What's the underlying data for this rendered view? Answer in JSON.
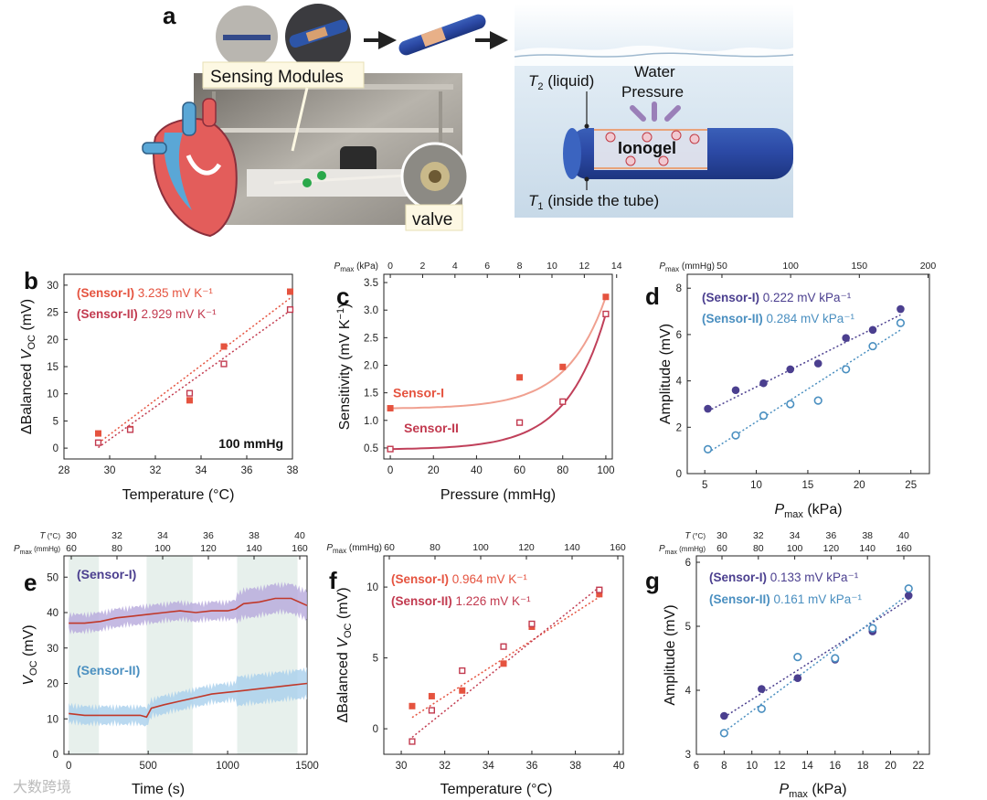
{
  "panel_a": {
    "label": "a",
    "sensing_modules_label": "Sensing Modules",
    "valve_label": "valve",
    "t2_label": "T",
    "t2_sub": "2",
    "t2_suffix": " (liquid)",
    "water_pressure_line1": "Water",
    "water_pressure_line2": "Pressure",
    "ionogel_label": "Ionogel",
    "t1_label": "T",
    "t1_sub": "1",
    "t1_suffix": " (inside the tube)"
  },
  "watermark": "大数跨境",
  "colors": {
    "sensor1_red": "#e5533f",
    "sensor2_red": "#c23a4f",
    "sensor1_purple": "#4b3f8f",
    "sensor2_blue": "#4a8fc0",
    "curve_light": "#f0a090",
    "curve_dark": "#c0405a"
  },
  "chart_data": [
    {
      "id": "b",
      "label": "b",
      "type": "scatter",
      "xlabel": "Temperature (°C)",
      "ylabel_prefix": "ΔBalanced ",
      "ylabel_var": "V",
      "ylabel_sub": "OC",
      "ylabel_suffix": " (mV)",
      "xlim": [
        28,
        38
      ],
      "ylim": [
        -2,
        32
      ],
      "xticks": [
        28,
        30,
        32,
        34,
        36,
        38
      ],
      "yticks": [
        0,
        5,
        10,
        15,
        20,
        25,
        30
      ],
      "annotation": "100 mmHg",
      "series": [
        {
          "name": "(Sensor-I)",
          "slope": "3.235 mV K⁻¹",
          "marker": "filled-square",
          "color": "#e5533f",
          "x": [
            29.5,
            30.9,
            33.5,
            35.0,
            37.9
          ],
          "y": [
            2.7,
            3.5,
            8.8,
            18.7,
            28.8
          ],
          "fit": [
            [
              29.5,
              0.9
            ],
            [
              37.9,
              27.6
            ]
          ]
        },
        {
          "name": "(Sensor-II)",
          "slope": "2.929 mV K⁻¹",
          "marker": "open-square",
          "color": "#c23a4f",
          "x": [
            29.5,
            30.9,
            33.5,
            35.0,
            37.9
          ],
          "y": [
            1.0,
            3.4,
            10.1,
            15.5,
            25.5
          ],
          "fit": [
            [
              29.5,
              0.1
            ],
            [
              37.9,
              25.3
            ]
          ]
        }
      ]
    },
    {
      "id": "c",
      "label": "c",
      "type": "scatter",
      "xlabel": "Pressure (mmHg)",
      "ylabel_prefix": "Sensitivity (mV K",
      "ylabel_sup": "−1",
      "ylabel_suffix": ")",
      "top_axis_var": "P",
      "top_axis_sub": "max",
      "top_axis_unit": " (kPa)",
      "top_ticks": [
        0,
        2,
        4,
        6,
        8,
        10,
        12,
        14
      ],
      "xlim": [
        -3,
        103
      ],
      "ylim": [
        0.3,
        3.65
      ],
      "xticks": [
        0,
        20,
        40,
        60,
        80,
        100
      ],
      "yticks": [
        0.5,
        1.0,
        1.5,
        2.0,
        2.5,
        3.0,
        3.5
      ],
      "yticklabels": [
        "0.5",
        "1.0",
        "1.5",
        "2.0",
        "2.5",
        "3.0",
        "3.5"
      ],
      "series": [
        {
          "name": "Sensor-I",
          "marker": "filled-square",
          "color": "#e5533f",
          "curve_color": "#f0a090",
          "x": [
            0,
            60,
            80,
            100
          ],
          "y": [
            1.22,
            1.78,
            1.97,
            3.24
          ]
        },
        {
          "name": "Sensor-II",
          "marker": "open-square",
          "color": "#c23a4f",
          "curve_color": "#c0405a",
          "x": [
            0,
            60,
            80,
            100
          ],
          "y": [
            0.48,
            0.96,
            1.34,
            2.93
          ]
        }
      ]
    },
    {
      "id": "d",
      "label": "d",
      "type": "scatter",
      "xlabel_var": "P",
      "xlabel_sub": "max",
      "xlabel_suffix": " (kPa)",
      "ylabel": "Amplitude (mV)",
      "top_axis_var": "P",
      "top_axis_sub": "max",
      "top_axis_unit": " (mmHg)",
      "top_ticks": [
        50,
        100,
        150,
        200
      ],
      "xlim": [
        3.3,
        26.8
      ],
      "ylim": [
        0,
        8.6
      ],
      "xticks": [
        5,
        10,
        15,
        20,
        25
      ],
      "yticks": [
        0,
        2,
        4,
        6,
        8
      ],
      "series": [
        {
          "name": "(Sensor-I)",
          "slope": "0.222 mV kPa⁻¹",
          "marker": "filled-circle",
          "color": "#4b3f8f",
          "x": [
            5.3,
            8.0,
            10.7,
            13.3,
            16.0,
            18.7,
            21.3,
            24.0
          ],
          "y": [
            2.8,
            3.6,
            3.9,
            4.5,
            4.75,
            5.85,
            6.2,
            7.1
          ],
          "fit": [
            [
              5.3,
              2.7
            ],
            [
              24.0,
              6.85
            ]
          ]
        },
        {
          "name": "(Sensor-II)",
          "slope": "0.284 mV kPa⁻¹",
          "marker": "open-circle",
          "color": "#4a8fc0",
          "x": [
            5.3,
            8.0,
            10.7,
            13.3,
            16.0,
            18.7,
            21.3,
            24.0
          ],
          "y": [
            1.05,
            1.65,
            2.5,
            3.0,
            3.15,
            4.5,
            5.5,
            6.5
          ],
          "fit": [
            [
              5.3,
              0.9
            ],
            [
              24.0,
              6.2
            ]
          ]
        }
      ]
    },
    {
      "id": "e",
      "label": "e",
      "type": "line",
      "xlabel": "Time (s)",
      "ylabel_var": "V",
      "ylabel_sub": "OC",
      "ylabel_suffix": " (mV)",
      "xlim": [
        -30,
        1500
      ],
      "ylim": [
        0,
        56
      ],
      "xticks": [
        0,
        500,
        1000,
        1500
      ],
      "yticks": [
        0,
        10,
        20,
        30,
        40,
        50
      ],
      "top_axis1_label": "T",
      "top_axis1_unit": " (°C)",
      "top_axis1_ticks": [
        30,
        32,
        34,
        36,
        38,
        40
      ],
      "top_axis2_var": "P",
      "top_axis2_sub": "max",
      "top_axis2_unit": " (mmHg)",
      "top_axis2_ticks": [
        60,
        80,
        100,
        120,
        140,
        160
      ],
      "shaded_bands": [
        [
          0,
          190
        ],
        [
          490,
          780
        ],
        [
          1060,
          1440
        ]
      ],
      "series": [
        {
          "name": "(Sensor-I)",
          "color": "#4b3f8f",
          "line_color": "#c0392b",
          "band_color": "#b7a9dc",
          "x": [
            0,
            100,
            200,
            300,
            400,
            500,
            600,
            700,
            800,
            900,
            1000,
            1050,
            1100,
            1200,
            1300,
            1400,
            1500
          ],
          "y": [
            37,
            37,
            37.5,
            38.5,
            39,
            39.5,
            40,
            40.5,
            40,
            40.5,
            40.5,
            41,
            42.5,
            43,
            44,
            44,
            42
          ]
        },
        {
          "name": "(Sensor-II)",
          "color": "#4a8fc0",
          "line_color": "#c0392b",
          "band_color": "#a9cfec",
          "x": [
            0,
            100,
            200,
            300,
            400,
            450,
            490,
            520,
            600,
            700,
            800,
            900,
            1000,
            1100,
            1200,
            1300,
            1400,
            1500
          ],
          "y": [
            11.5,
            11,
            11,
            11,
            11,
            11,
            10.5,
            13,
            14,
            15,
            16,
            17,
            17.5,
            18,
            18.5,
            19,
            19.5,
            20
          ]
        }
      ]
    },
    {
      "id": "f",
      "label": "f",
      "type": "scatter",
      "xlabel": "Temperature (°C)",
      "ylabel_prefix": "ΔBalanced ",
      "ylabel_var": "V",
      "ylabel_sub": "OC",
      "ylabel_suffix": " (mV)",
      "top_axis_var": "P",
      "top_axis_sub": "max",
      "top_axis_unit": " (mmHg)",
      "top_ticks": [
        60,
        80,
        100,
        120,
        140,
        160
      ],
      "xlim": [
        29.2,
        40.2
      ],
      "ylim": [
        -1.8,
        12.2
      ],
      "xticks": [
        30,
        32,
        34,
        36,
        38,
        40
      ],
      "yticks": [
        0,
        5,
        10
      ],
      "series": [
        {
          "name": "(Sensor-I)",
          "slope": "0.964 mV K⁻¹",
          "marker": "filled-square",
          "color": "#e5533f",
          "x": [
            30.5,
            31.4,
            32.8,
            34.7,
            36.0,
            39.1
          ],
          "y": [
            1.6,
            2.3,
            2.7,
            4.6,
            7.2,
            9.5
          ],
          "fit": [
            [
              30.5,
              0.8
            ],
            [
              39.1,
              9.3
            ]
          ]
        },
        {
          "name": "(Sensor-II)",
          "slope": "1.226 mV K⁻¹",
          "marker": "open-square",
          "color": "#c23a4f",
          "x": [
            30.5,
            31.4,
            32.8,
            34.7,
            36.0,
            39.1
          ],
          "y": [
            -0.9,
            1.3,
            4.1,
            5.8,
            7.4,
            9.8
          ],
          "fit": [
            [
              30.5,
              -0.6
            ],
            [
              39.1,
              10.0
            ]
          ]
        }
      ]
    },
    {
      "id": "g",
      "label": "g",
      "type": "scatter",
      "xlabel_var": "P",
      "xlabel_sub": "max",
      "xlabel_suffix": " (kPa)",
      "ylabel": "Amplitude (mV)",
      "top_axis1_label": "T",
      "top_axis1_unit": " (°C)",
      "top_axis1_ticks": [
        30,
        32,
        34,
        36,
        38,
        40
      ],
      "top_axis2_var": "P",
      "top_axis2_sub": "max",
      "top_axis2_unit": " (mmHg)",
      "top_axis2_ticks": [
        60,
        80,
        100,
        120,
        140,
        160
      ],
      "xlim": [
        6,
        22.8
      ],
      "ylim": [
        3,
        6.1
      ],
      "xticks": [
        6,
        8,
        10,
        12,
        14,
        16,
        18,
        20,
        22
      ],
      "yticks": [
        3,
        4,
        5,
        6
      ],
      "series": [
        {
          "name": "(Sensor-I)",
          "slope": "0.133 mV kPa⁻¹",
          "marker": "filled-circle",
          "color": "#4b3f8f",
          "x": [
            8.0,
            10.7,
            13.3,
            16.0,
            18.7,
            21.3
          ],
          "y": [
            3.6,
            4.02,
            4.19,
            4.48,
            4.92,
            5.48
          ],
          "fit": [
            [
              8.0,
              3.58
            ],
            [
              21.3,
              5.42
            ]
          ]
        },
        {
          "name": "(Sensor-II)",
          "slope": "0.161 mV kPa⁻¹",
          "marker": "open-circle",
          "color": "#4a8fc0",
          "x": [
            8.0,
            10.7,
            13.3,
            16.0,
            18.7,
            21.3
          ],
          "y": [
            3.33,
            3.71,
            4.52,
            4.5,
            4.97,
            5.59
          ],
          "fit": [
            [
              8.0,
              3.35
            ],
            [
              21.3,
              5.5
            ]
          ]
        }
      ]
    }
  ]
}
